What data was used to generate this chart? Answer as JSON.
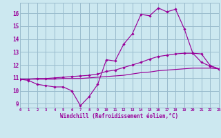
{
  "xlabel": "Windchill (Refroidissement éolien,°C)",
  "xlim": [
    0,
    23
  ],
  "ylim": [
    8.7,
    16.8
  ],
  "xticks": [
    0,
    1,
    2,
    3,
    4,
    5,
    6,
    7,
    8,
    9,
    10,
    11,
    12,
    13,
    14,
    15,
    16,
    17,
    18,
    19,
    20,
    21,
    22,
    23
  ],
  "yticks": [
    9,
    10,
    11,
    12,
    13,
    14,
    15,
    16
  ],
  "bg_color": "#cce8f0",
  "line_color": "#990099",
  "grid_color": "#99bbcc",
  "curve1_x": [
    0,
    1,
    2,
    3,
    4,
    5,
    6,
    7,
    8,
    9,
    10,
    11,
    12,
    13,
    14,
    15,
    16,
    17,
    18,
    19,
    20,
    21,
    22,
    23
  ],
  "curve1_y": [
    10.9,
    10.8,
    10.5,
    10.4,
    10.3,
    10.3,
    10.0,
    8.85,
    9.55,
    10.5,
    12.4,
    12.3,
    13.6,
    14.4,
    15.9,
    15.8,
    16.4,
    16.1,
    16.3,
    14.8,
    12.9,
    12.2,
    11.9,
    11.7
  ],
  "curve2_x": [
    0,
    1,
    2,
    3,
    4,
    5,
    6,
    7,
    8,
    9,
    10,
    11,
    12,
    13,
    14,
    15,
    16,
    17,
    18,
    19,
    20,
    21,
    22,
    23
  ],
  "curve2_y": [
    10.9,
    10.9,
    10.95,
    10.95,
    11.0,
    11.05,
    11.1,
    11.15,
    11.2,
    11.3,
    11.5,
    11.6,
    11.8,
    12.0,
    12.2,
    12.45,
    12.65,
    12.75,
    12.85,
    12.9,
    12.9,
    12.85,
    11.95,
    11.7
  ],
  "curve3_x": [
    0,
    1,
    2,
    3,
    4,
    5,
    6,
    7,
    8,
    9,
    10,
    11,
    12,
    13,
    14,
    15,
    16,
    17,
    18,
    19,
    20,
    21,
    22,
    23
  ],
  "curve3_y": [
    10.9,
    10.9,
    10.9,
    10.9,
    10.9,
    10.95,
    10.95,
    10.95,
    11.0,
    11.05,
    11.1,
    11.15,
    11.2,
    11.3,
    11.4,
    11.45,
    11.55,
    11.6,
    11.65,
    11.7,
    11.75,
    11.75,
    11.75,
    11.7
  ]
}
